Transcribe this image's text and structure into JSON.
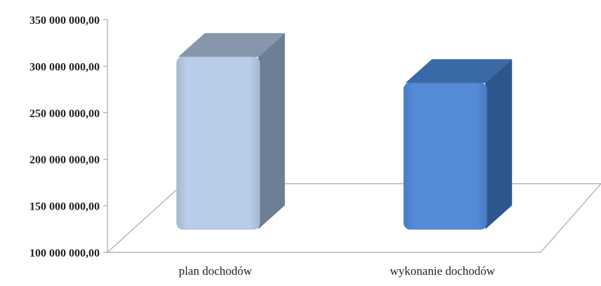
{
  "chart_data": {
    "type": "bar",
    "style": "3d-column",
    "categories": [
      "plan dochodów",
      "wykonanie dochodów"
    ],
    "values": [
      325000000,
      297000000
    ],
    "ylim": [
      100000000,
      350000000
    ],
    "yticks": [
      100000000,
      150000000,
      200000000,
      250000000,
      300000000,
      350000000
    ],
    "ytick_labels": [
      "100 000 000,00",
      "150 000 000,00",
      "200 000 000,00",
      "250 000 000,00",
      "300 000 000,00",
      "350 000 000,00"
    ],
    "grid": false,
    "legend": "none",
    "colors": [
      {
        "front": "#b9cde8",
        "side": "#6e7f95",
        "top": "#8696ad",
        "edge": "#a7b8d0"
      },
      {
        "front": "#558ad6",
        "side": "#2d568c",
        "top": "#3a69a8",
        "edge": "#4a7cc4"
      }
    ]
  }
}
